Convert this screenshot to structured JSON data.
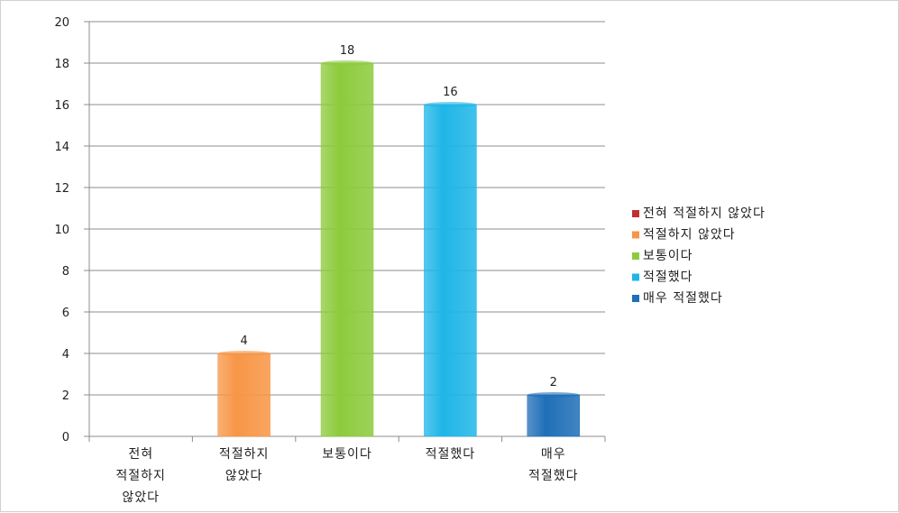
{
  "chart_data": {
    "type": "bar",
    "title": "",
    "xlabel": "",
    "ylabel": "",
    "categories": [
      [
        "전혀",
        "적절하지",
        "않았다"
      ],
      [
        "적절하지",
        "않았다"
      ],
      [
        "보통이다"
      ],
      [
        "적절했다"
      ],
      [
        "매우",
        "적절했다"
      ]
    ],
    "values": [
      0,
      4,
      18,
      16,
      2
    ],
    "data_labels": [
      "",
      "4",
      "18",
      "16",
      "2"
    ],
    "colors": [
      "#c0302f",
      "#f79646",
      "#8ccb3c",
      "#1fb6e8",
      "#1f6fb8"
    ],
    "ylim": [
      0,
      20
    ],
    "yticks": [
      "0",
      "2",
      "4",
      "6",
      "8",
      "10",
      "12",
      "14",
      "16",
      "18",
      "20"
    ],
    "grid": true,
    "legend_position": "right",
    "legend": [
      {
        "label": "전혀 적절하지 않았다",
        "color": "#c0302f"
      },
      {
        "label": "적절하지 않았다",
        "color": "#f79646"
      },
      {
        "label": "보통이다",
        "color": "#8ccb3c"
      },
      {
        "label": "적절했다",
        "color": "#1fb6e8"
      },
      {
        "label": "매우 적절했다",
        "color": "#1f6fb8"
      }
    ]
  }
}
